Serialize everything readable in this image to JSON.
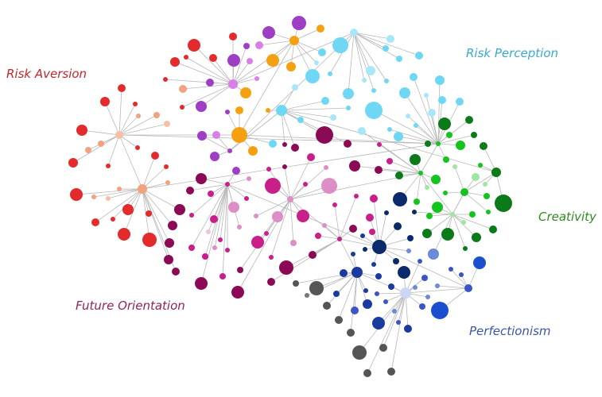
{
  "labels": {
    "risk_aversion": "Risk Aversion",
    "risk_perception": "Risk Perception",
    "creativity": "Creativity",
    "future_orientation": "Future Orientation",
    "perfectionism": "Perfectionism"
  },
  "colors": {
    "risk_aversion": "#c0262d",
    "risk_perception": "#3aa8cf",
    "creativity": "#2e8b1e",
    "future_orientation": "#8e2360",
    "perfectionism": "#3b55a8",
    "edge": "#b8b8b8"
  },
  "clusters": [
    "risk-aversion",
    "risk-perception",
    "creativity",
    "future-orientation",
    "perfectionism",
    "stem"
  ]
}
